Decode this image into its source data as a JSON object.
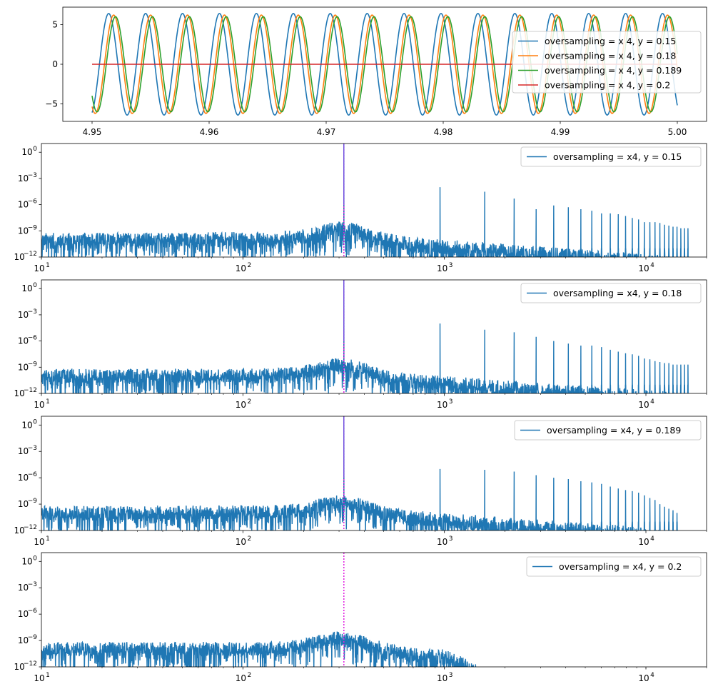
{
  "chart_data": [
    {
      "type": "line",
      "xlim": [
        4.9475,
        5.0025
      ],
      "ylim": [
        -7.2,
        7.2
      ],
      "x_ticks": [
        4.95,
        4.96,
        4.97,
        4.98,
        4.99,
        5.0
      ],
      "x_tick_labels": [
        "4.95",
        "4.96",
        "4.97",
        "4.98",
        "4.99",
        "5.00"
      ],
      "y_ticks": [
        -5,
        0,
        5
      ],
      "y_tick_labels": [
        "−5",
        "0",
        "5"
      ],
      "legend_position": "right",
      "series": [
        {
          "name": "oversampling = x 4, y = 0.15",
          "color": "#1f77b4",
          "frequency_hz": 317,
          "amplitude": 6.4,
          "phase": -0.4
        },
        {
          "name": "oversampling = x 4, y = 0.18",
          "color": "#ff7f0e",
          "frequency_hz": 317,
          "amplitude": 6.2,
          "phase": -0.67
        },
        {
          "name": "oversampling = x 4, y = 0.189",
          "color": "#2ca02c",
          "frequency_hz": 317,
          "amplitude": 6.0,
          "phase": -0.77
        },
        {
          "name": "oversampling = x 4, y = 0.2",
          "color": "#d62728",
          "frequency_hz": 317,
          "amplitude": 0.0,
          "phase": 0
        }
      ]
    },
    {
      "type": "line",
      "log_x": true,
      "log_y": true,
      "xlim": [
        10,
        20000
      ],
      "ylim": [
        1e-12,
        10
      ],
      "x_ticks": [
        10,
        100,
        1000,
        10000
      ],
      "x_tick_labels": [
        "10",
        "2",
        "10",
        "3",
        "10",
        "4"
      ],
      "x_tick_bases": [
        "10",
        "10",
        "10",
        "10"
      ],
      "x_tick_exponents": [
        "1",
        "2",
        "3",
        "4"
      ],
      "y_ticks": [
        1,
        0.001,
        1e-06,
        1e-09,
        1e-12
      ],
      "y_tick_bases": [
        "10",
        "10",
        "10",
        "10",
        "10"
      ],
      "y_tick_exponents": [
        "0",
        "−3",
        "−6",
        "−9",
        "−12"
      ],
      "legend_position": "top-right",
      "marker_frequency": 317,
      "marker_color": "#e020e0",
      "series": [
        {
          "name": "oversampling = x4, y = 0.15",
          "color": "#1f77b4",
          "fundamental_peak": 10,
          "harmonic_peaks": [
            0.0001,
            3e-05,
            5e-06,
            3e-07,
            8e-07,
            5e-07,
            3e-07,
            2e-07,
            1e-07,
            1e-07,
            8e-08,
            5e-08,
            3e-08,
            2e-08,
            1e-08,
            1e-08,
            1e-08,
            8e-09,
            5e-09,
            4e-09,
            3e-09,
            3e-09,
            2e-09,
            2e-09,
            2e-09
          ],
          "noise_floor": 1e-10,
          "hf_cutoff": 20000
        }
      ]
    },
    {
      "type": "line",
      "log_x": true,
      "log_y": true,
      "xlim": [
        10,
        20000
      ],
      "ylim": [
        1e-12,
        10
      ],
      "x_ticks": [
        10,
        100,
        1000,
        10000
      ],
      "x_tick_bases": [
        "10",
        "10",
        "10",
        "10"
      ],
      "x_tick_exponents": [
        "1",
        "2",
        "3",
        "4"
      ],
      "y_ticks": [
        1,
        0.001,
        1e-06,
        1e-09,
        1e-12
      ],
      "y_tick_bases": [
        "10",
        "10",
        "10",
        "10",
        "10"
      ],
      "y_tick_exponents": [
        "0",
        "−3",
        "−6",
        "−9",
        "−12"
      ],
      "legend_position": "top-right",
      "marker_frequency": 317,
      "marker_color": "#e020e0",
      "series": [
        {
          "name": "oversampling = x4, y = 0.18",
          "color": "#1f77b4",
          "fundamental_peak": 10,
          "harmonic_peaks": [
            0.0001,
            2e-05,
            1e-05,
            3e-06,
            1e-06,
            5e-07,
            3e-07,
            3e-07,
            2e-07,
            1e-07,
            6e-08,
            4e-08,
            3e-08,
            2e-08,
            1e-08,
            8e-09,
            5e-09,
            4e-09,
            3e-09,
            3e-09,
            2e-09,
            2e-09,
            2e-09,
            2e-09,
            2e-09
          ],
          "noise_floor": 1e-10,
          "hf_cutoff": 20000
        }
      ]
    },
    {
      "type": "line",
      "log_x": true,
      "log_y": true,
      "xlim": [
        10,
        20000
      ],
      "ylim": [
        1e-12,
        10
      ],
      "x_ticks": [
        10,
        100,
        1000,
        10000
      ],
      "x_tick_bases": [
        "10",
        "10",
        "10",
        "10"
      ],
      "x_tick_exponents": [
        "1",
        "2",
        "3",
        "4"
      ],
      "y_ticks": [
        1,
        0.001,
        1e-06,
        1e-09,
        1e-12
      ],
      "y_tick_bases": [
        "10",
        "10",
        "10",
        "10",
        "10"
      ],
      "y_tick_exponents": [
        "0",
        "−3",
        "−6",
        "−9",
        "−12"
      ],
      "legend_position": "top-right",
      "marker_frequency": 317,
      "marker_color": "#e020e0",
      "series": [
        {
          "name": "oversampling = x4, y = 0.189",
          "color": "#1f77b4",
          "fundamental_peak": 10,
          "harmonic_peaks": [
            1e-05,
            8e-06,
            5e-06,
            2e-06,
            1e-06,
            7e-07,
            4e-07,
            3e-07,
            2e-07,
            1e-07,
            6e-08,
            4e-08,
            3e-08,
            2e-08,
            1e-08,
            5e-09,
            3e-09,
            1e-09,
            5e-10,
            3e-10,
            2e-10,
            1e-10
          ],
          "noise_floor": 1e-10,
          "hf_cutoff": 16000
        }
      ]
    },
    {
      "type": "line",
      "log_x": true,
      "log_y": true,
      "xlim": [
        10,
        20000
      ],
      "ylim": [
        1e-12,
        10
      ],
      "x_ticks": [
        10,
        100,
        1000,
        10000
      ],
      "x_tick_bases": [
        "10",
        "10",
        "10",
        "10"
      ],
      "x_tick_exponents": [
        "1",
        "2",
        "3",
        "4"
      ],
      "y_ticks": [
        1,
        0.001,
        1e-06,
        1e-09,
        1e-12
      ],
      "y_tick_bases": [
        "10",
        "10",
        "10",
        "10",
        "10"
      ],
      "y_tick_exponents": [
        "0",
        "−3",
        "−6",
        "−9",
        "−12"
      ],
      "legend_position": "top-right",
      "marker_frequency": 317,
      "marker_color": "#e020e0",
      "series": [
        {
          "name": "oversampling = x4, y = 0.2",
          "color": "#1f77b4",
          "fundamental_peak": 3e-09,
          "harmonic_peaks": [],
          "noise_floor": 1e-10,
          "hf_cutoff": 1450
        }
      ]
    }
  ]
}
